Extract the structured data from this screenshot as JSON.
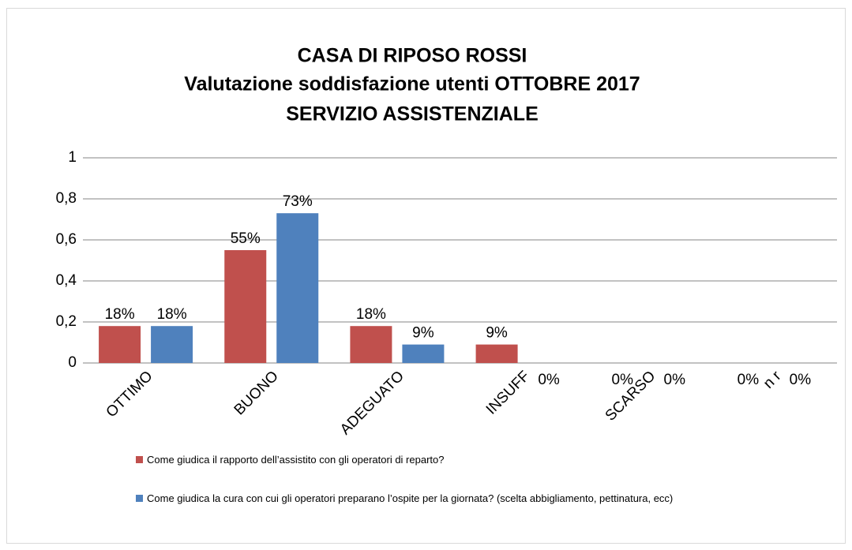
{
  "chart_data": {
    "type": "bar",
    "title": [
      "CASA DI RIPOSO ROSSI",
      "Valutazione soddisfazione utenti OTTOBRE 2017",
      "SERVIZIO ASSISTENZIALE"
    ],
    "categories": [
      "OTTIMO",
      "BUONO",
      "ADEGUATO",
      "INSUFF",
      "SCARSO",
      "n r"
    ],
    "series": [
      {
        "name": "Come giudica il rapporto dell’assistito con gli operatori di reparto?",
        "color": "#c0504d",
        "values": [
          0.18,
          0.55,
          0.18,
          0.09,
          0,
          0
        ],
        "value_labels": [
          "18%",
          "55%",
          "18%",
          "9%",
          "0%",
          "0%"
        ]
      },
      {
        "name": "Come giudica la cura con cui gli operatori preparano l’ospite per la giornata? (scelta abbigliamento, pettinatura, ecc)",
        "color": "#4f81bd",
        "values": [
          0.18,
          0.73,
          0.09,
          0,
          0,
          0
        ],
        "value_labels": [
          "18%",
          "73%",
          "9%",
          "0%",
          "0%",
          "0%"
        ]
      }
    ],
    "ylim": [
      0,
      1
    ],
    "yticks": [
      0,
      {
        "value": 0.2,
        "label": "0,2"
      },
      {
        "value": 0.4,
        "label": "0,4"
      },
      {
        "value": 0.6,
        "label": "0,6"
      },
      {
        "value": 0.8,
        "label": "0,8"
      },
      1
    ],
    "grid": true,
    "legend": "bottom"
  }
}
